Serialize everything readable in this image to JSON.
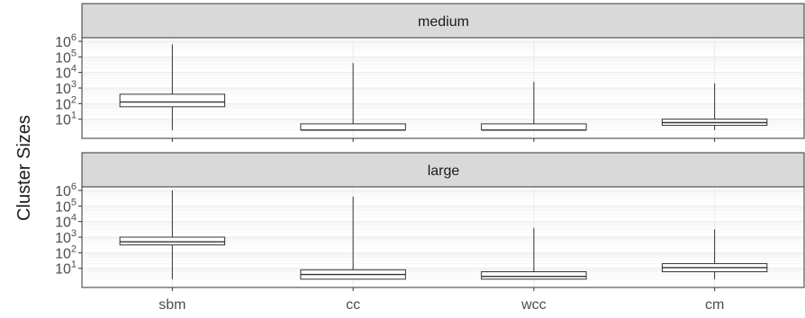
{
  "chart_data": {
    "type": "box",
    "ylabel": "Cluster Sizes",
    "yscale": "log10",
    "ylim": [
      1,
      1000000
    ],
    "y_ticks": [
      {
        "value": 10,
        "base": "10",
        "exp": "1"
      },
      {
        "value": 100,
        "base": "10",
        "exp": "2"
      },
      {
        "value": 1000,
        "base": "10",
        "exp": "3"
      },
      {
        "value": 10000,
        "base": "10",
        "exp": "4"
      },
      {
        "value": 100000,
        "base": "10",
        "exp": "5"
      },
      {
        "value": 1000000,
        "base": "10",
        "exp": "6"
      }
    ],
    "categories": [
      "sbm",
      "cc",
      "wcc",
      "cm"
    ],
    "grid": true,
    "panels": [
      {
        "name": "medium",
        "boxes": [
          {
            "category": "sbm",
            "min": 2,
            "q1": 63,
            "median": 126,
            "q3": 400,
            "max": 631000
          },
          {
            "category": "cc",
            "min": 2,
            "q1": 2,
            "median": 2,
            "q3": 5,
            "max": 39800
          },
          {
            "category": "wcc",
            "min": 2,
            "q1": 2,
            "median": 2,
            "q3": 5,
            "max": 2510
          },
          {
            "category": "cm",
            "min": 2,
            "q1": 4,
            "median": 6,
            "q3": 10,
            "max": 2000
          }
        ]
      },
      {
        "name": "large",
        "boxes": [
          {
            "category": "sbm",
            "min": 2,
            "q1": 316,
            "median": 501,
            "q3": 1000,
            "max": 1000000
          },
          {
            "category": "cc",
            "min": 2,
            "q1": 2,
            "median": 4,
            "q3": 8,
            "max": 398000
          },
          {
            "category": "wcc",
            "min": 2,
            "q1": 2,
            "median": 3,
            "q3": 6,
            "max": 3980
          },
          {
            "category": "cm",
            "min": 2,
            "q1": 6,
            "median": 11,
            "q3": 20,
            "max": 3160
          }
        ]
      }
    ]
  }
}
